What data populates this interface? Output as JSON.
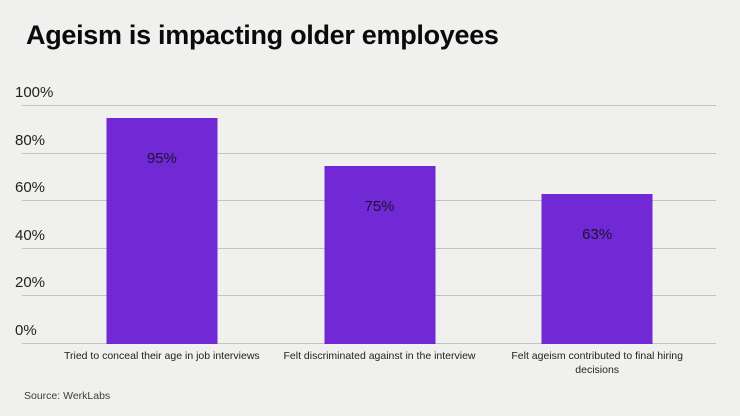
{
  "header": {
    "title": "Ageism is impacting older employees"
  },
  "chart_data": {
    "type": "bar",
    "title": "Ageism is impacting older employees",
    "categories": [
      "Tried to conceal their age in job interviews",
      "Felt discriminated against in the interview",
      "Felt ageism contributed to final hiring decisions"
    ],
    "values": [
      95,
      75,
      63
    ],
    "value_labels": [
      "95%",
      "75%",
      "63%"
    ],
    "yticks": [
      0,
      20,
      40,
      60,
      80,
      100
    ],
    "ytick_labels": [
      "0%",
      "20%",
      "40%",
      "60%",
      "80%",
      "100%"
    ],
    "ylim": [
      0,
      100
    ],
    "xlabel": "",
    "ylabel": "",
    "grid": "horizontal",
    "legend": "none",
    "bar_color": "#7029d4",
    "value_label_color": "#1c1230",
    "gridline_color": "#c2c2c2",
    "background_color": "#f0f0ee"
  },
  "footer": {
    "source": "Source: WerkLabs"
  }
}
